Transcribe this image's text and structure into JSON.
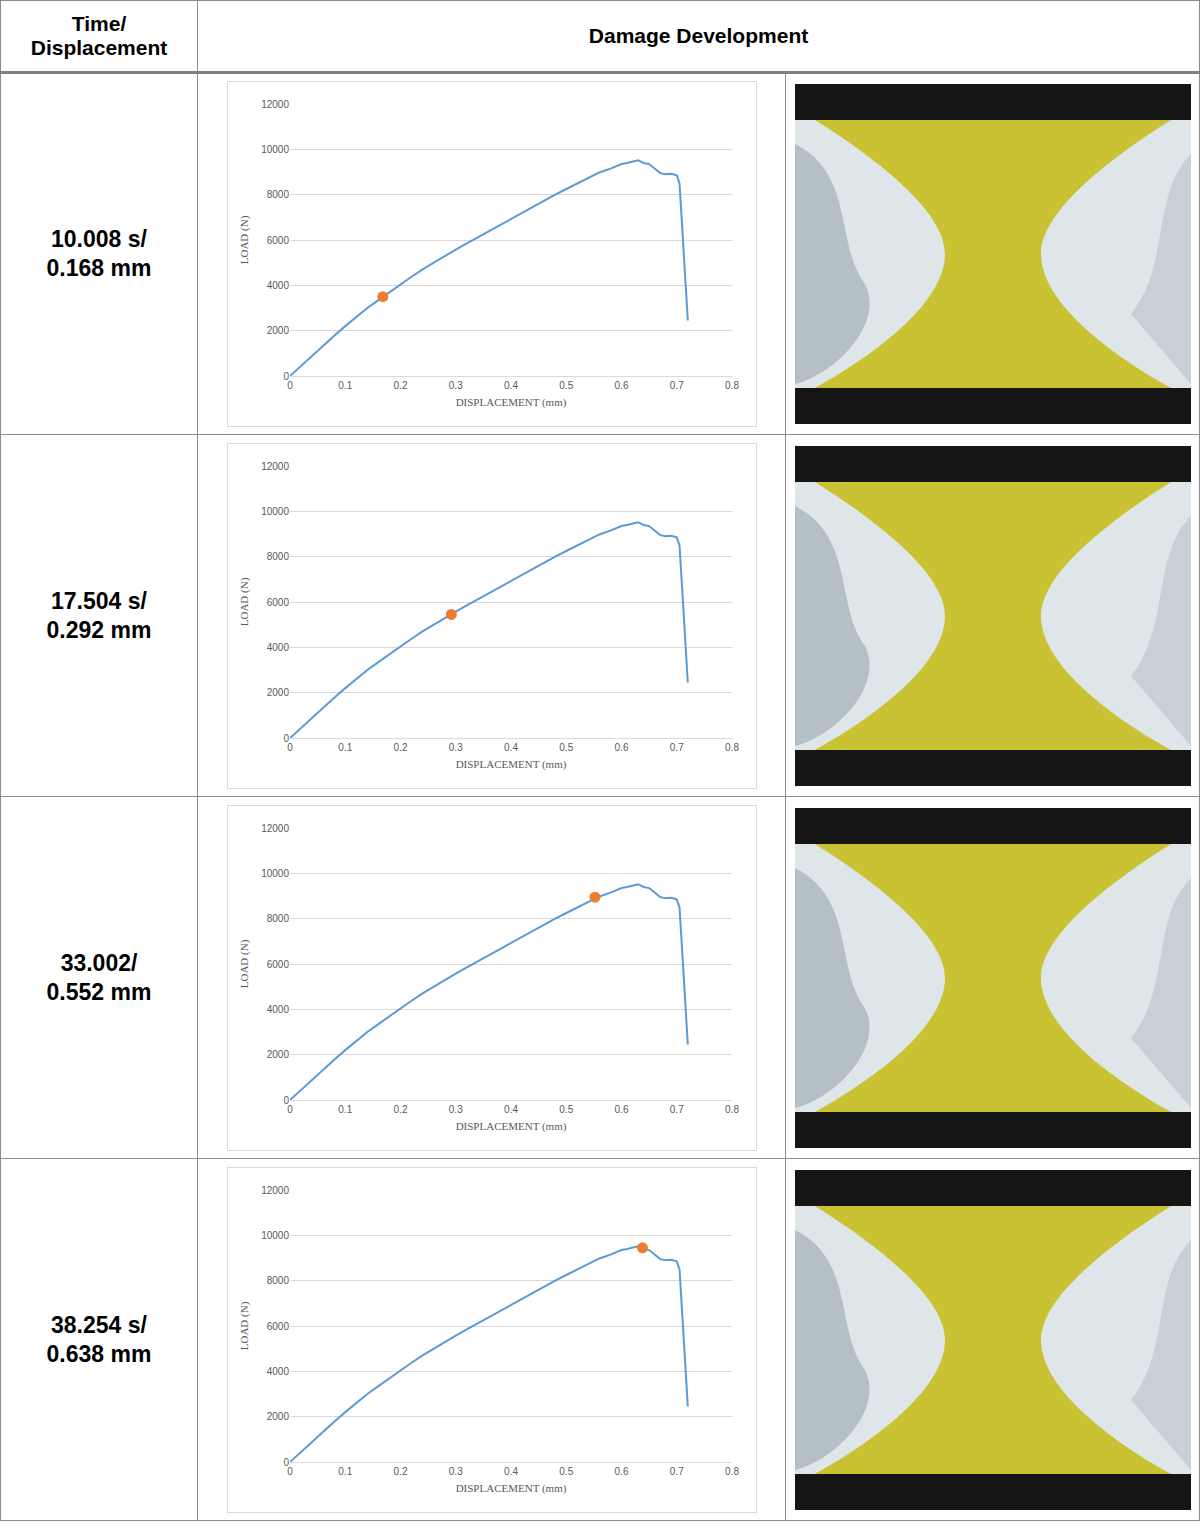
{
  "header": {
    "col1": "Time/ Displacement",
    "col2": "Damage Development"
  },
  "chart_data": {
    "type": "line",
    "x_label": "DISPLACEMENT (mm)",
    "y_label": "LOAD (N)",
    "xlim": [
      0,
      0.8
    ],
    "ylim": [
      0,
      12000
    ],
    "xticks": [
      0,
      0.1,
      0.2,
      0.3,
      0.4,
      0.5,
      0.6,
      0.7,
      0.8
    ],
    "yticks": [
      0,
      2000,
      4000,
      6000,
      8000,
      10000,
      12000
    ],
    "grid": true,
    "color": "#5b9bd5",
    "x": [
      0,
      0.02,
      0.04,
      0.06,
      0.08,
      0.1,
      0.12,
      0.14,
      0.16,
      0.18,
      0.2,
      0.22,
      0.24,
      0.26,
      0.28,
      0.3,
      0.32,
      0.34,
      0.36,
      0.38,
      0.4,
      0.42,
      0.44,
      0.46,
      0.48,
      0.5,
      0.52,
      0.54,
      0.56,
      0.58,
      0.6,
      0.61,
      0.62,
      0.63,
      0.64,
      0.65,
      0.66,
      0.67,
      0.68,
      0.69,
      0.7,
      0.705,
      0.71,
      0.715,
      0.72
    ],
    "values": [
      0,
      450,
      900,
      1350,
      1780,
      2200,
      2600,
      3000,
      3350,
      3700,
      4050,
      4380,
      4700,
      5000,
      5300,
      5580,
      5850,
      6120,
      6400,
      6680,
      6950,
      7200,
      7480,
      7750,
      8000,
      8250,
      8500,
      8750,
      8980,
      9150,
      9350,
      9400,
      9450,
      9520,
      9400,
      9350,
      9150,
      8950,
      8900,
      8920,
      8850,
      8500,
      6500,
      4500,
      2450
    ]
  },
  "rows": [
    {
      "label": "10.008 s/ 0.168 mm",
      "marker": {
        "x": 0.168,
        "y": 3500,
        "color": "#ed7d31"
      }
    },
    {
      "label": "17.504 s/ 0.292 mm",
      "marker": {
        "x": 0.292,
        "y": 5450,
        "color": "#ed7d31"
      }
    },
    {
      "label": "33.002/ 0.552 mm",
      "marker": {
        "x": 0.552,
        "y": 8950,
        "color": "#ed7d31"
      }
    },
    {
      "label": "38.254 s/ 0.638 mm",
      "marker": {
        "x": 0.638,
        "y": 9450,
        "color": "#ed7d31"
      }
    }
  ]
}
